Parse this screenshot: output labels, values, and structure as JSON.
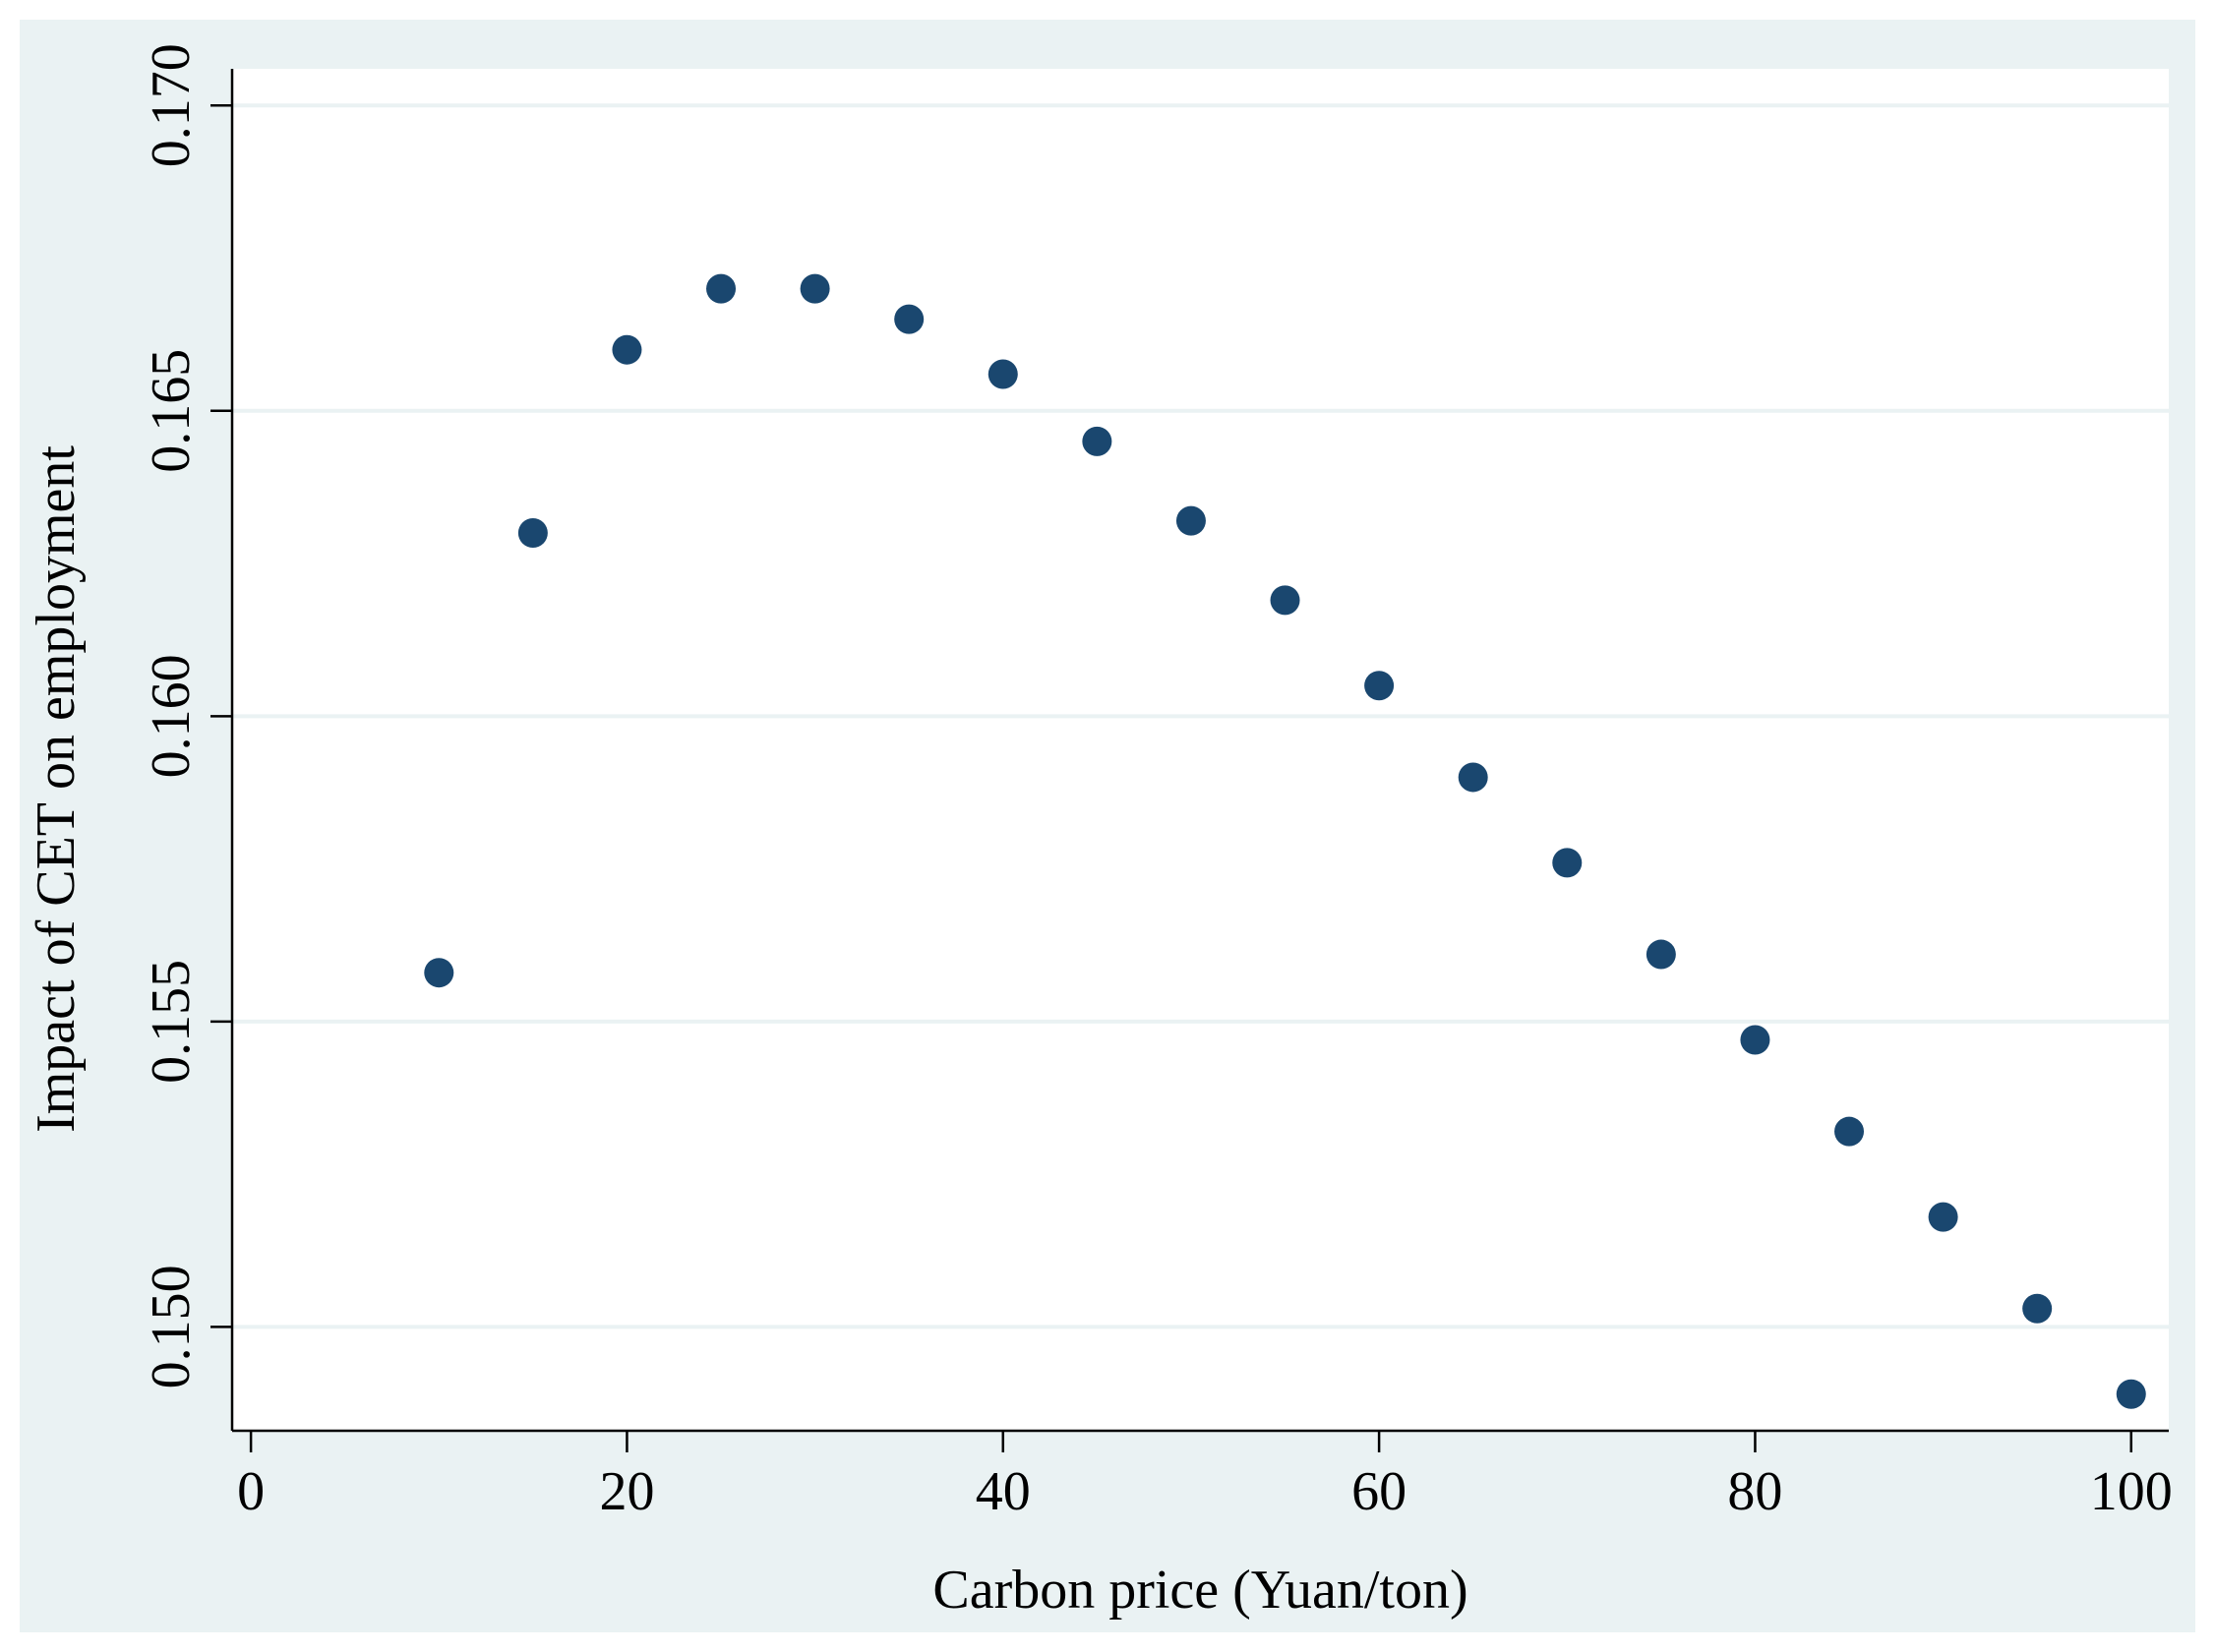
{
  "chart_data": {
    "type": "scatter",
    "title": "",
    "xlabel": "Carbon price (Yuan/ton)",
    "ylabel": "Impact of  CET on employment",
    "xlim": [
      -1,
      102
    ],
    "ylim": [
      0.1483,
      0.1706
    ],
    "xticks": [
      0,
      20,
      40,
      60,
      80,
      100
    ],
    "yticks": [
      0.15,
      0.155,
      0.16,
      0.165,
      0.17
    ],
    "xtick_labels": [
      "0",
      "20",
      "40",
      "60",
      "80",
      "100"
    ],
    "ytick_labels": [
      "0.150",
      "0.155",
      "0.160",
      "0.165",
      "0.170"
    ],
    "grid": "horizontal",
    "series": [
      {
        "name": "impact",
        "color": "#1a476f",
        "x": [
          10,
          15,
          20,
          25,
          30,
          35,
          40,
          45,
          50,
          55,
          60,
          65,
          70,
          75,
          80,
          85,
          90,
          95,
          100
        ],
        "y": [
          0.1558,
          0.163,
          0.166,
          0.167,
          0.167,
          0.1665,
          0.1656,
          0.1645,
          0.1632,
          0.1619,
          0.1605,
          0.159,
          0.1576,
          0.1561,
          0.1547,
          0.1532,
          0.1518,
          0.1503,
          0.1489
        ]
      }
    ],
    "colors": {
      "background": "#eaf2f3",
      "plot_background": "#ffffff",
      "grid": "#eaf2f3",
      "axis": "#000000"
    }
  }
}
